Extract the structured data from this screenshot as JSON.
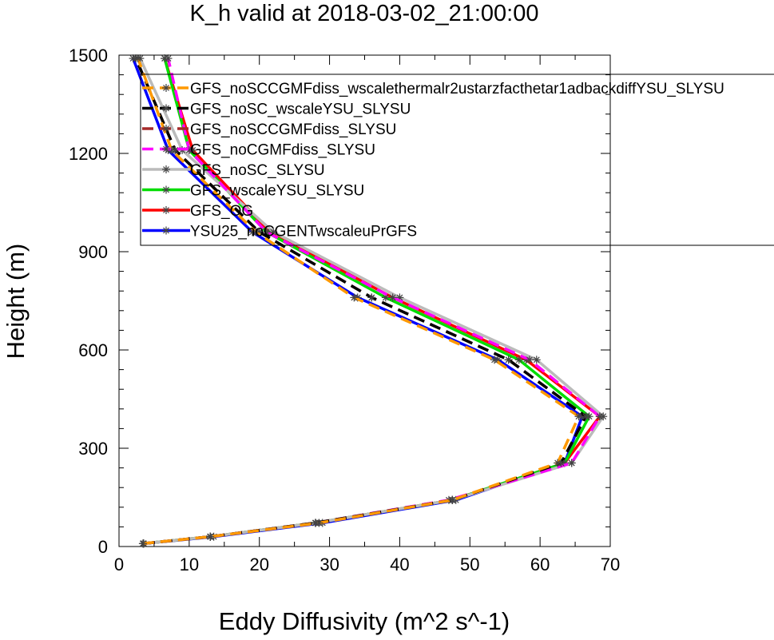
{
  "chart_data": {
    "type": "line",
    "title": "K_h valid at 2018-03-02_21:00:00",
    "xlabel": "Eddy Diffusivity (m^2 s^-1)",
    "ylabel": "Height (m)",
    "xlim": [
      0,
      70
    ],
    "ylim": [
      0,
      1500
    ],
    "x_ticks": [
      "0",
      "10",
      "20",
      "30",
      "40",
      "50",
      "60",
      "70"
    ],
    "y_ticks": [
      "0",
      "300",
      "600",
      "900",
      "1200",
      "1500"
    ],
    "legend_position": "upper-right, extending past plot",
    "heights": [
      9,
      30,
      72,
      142,
      255,
      397,
      570,
      760,
      960,
      1210,
      1490
    ],
    "series": [
      {
        "name": "GFS_noSCCGMFdiss_wscalethermalr2ustarzfacthetar1adbackdiffYSU_SLYSU",
        "color": "#ff9900",
        "dash": "dash",
        "values": [
          3.4,
          13,
          28.5,
          47.5,
          62.5,
          65.5,
          53.5,
          33.5,
          19.5,
          7.5,
          2.7
        ]
      },
      {
        "name": "GFS_noSC_wscaleYSU_SLYSU",
        "color": "#000000",
        "dash": "dash",
        "values": [
          3.5,
          13,
          28,
          47.5,
          63,
          66.5,
          55.5,
          36,
          20,
          8,
          2.4
        ]
      },
      {
        "name": "GFS_noSCCGMFdiss_SLYSU",
        "color": "#a52a2a",
        "dash": "dash",
        "values": [
          3.5,
          13,
          28,
          47.5,
          63,
          66.5,
          55.5,
          36,
          20,
          8,
          2.4
        ]
      },
      {
        "name": "GFS_noCGMFdiss_SLYSU",
        "color": "#ff00ff",
        "dash": "dash",
        "values": [
          3.5,
          13,
          28,
          47,
          64.5,
          68.5,
          58.5,
          39,
          21,
          10,
          7
        ]
      },
      {
        "name": "GFS_noSC_SLYSU",
        "color": "#bbbbbb",
        "dash": "solid",
        "values": [
          3.5,
          13,
          28,
          47.5,
          64.5,
          69,
          59.5,
          40,
          22,
          9,
          3
        ]
      },
      {
        "name": "GFS_wscaleYSU_SLYSU",
        "color": "#00dd00",
        "dash": "solid",
        "values": [
          3.5,
          13,
          28,
          47.5,
          63.5,
          67,
          57,
          38,
          21,
          10,
          6.5
        ]
      },
      {
        "name": "GFS_OG",
        "color": "#ff0000",
        "dash": "solid",
        "values": [
          3.5,
          13,
          28,
          47.5,
          63.5,
          68.5,
          58,
          39,
          21.5,
          10.5,
          6.5
        ]
      },
      {
        "name": "YSU25_noCGENTwscaleuPrGFS",
        "color": "#0000ff",
        "dash": "solid",
        "values": [
          3.5,
          13.5,
          29,
          48,
          63.5,
          66,
          54,
          34,
          19,
          7,
          2
        ]
      }
    ]
  }
}
